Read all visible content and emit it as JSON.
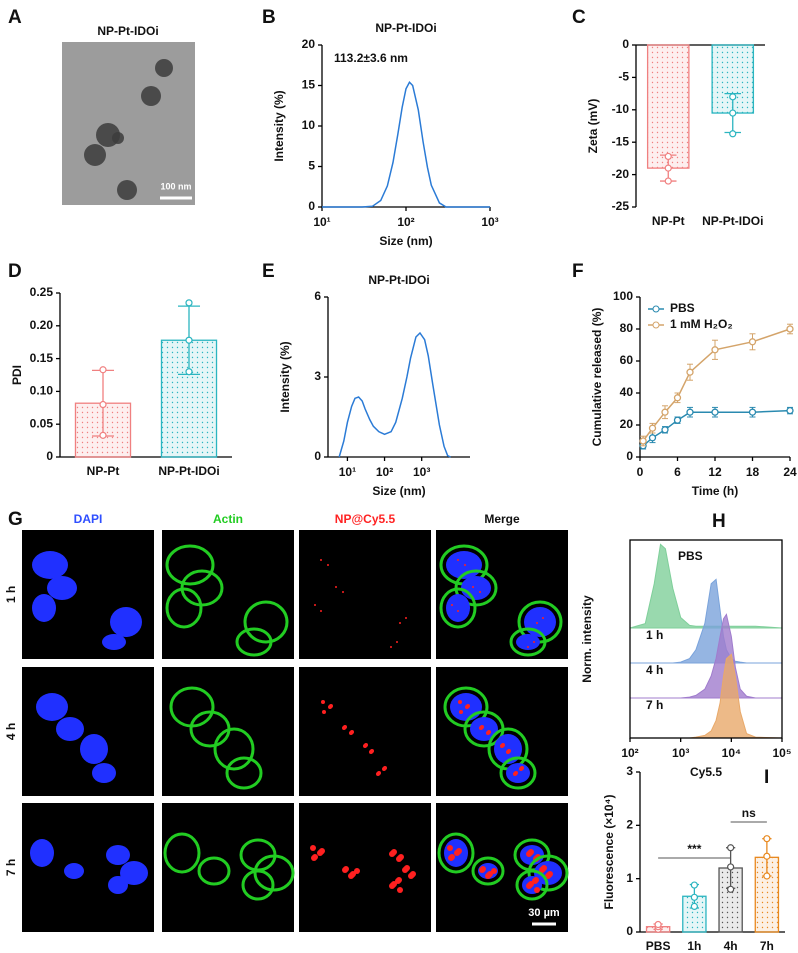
{
  "micrograph": {
    "panel": "A",
    "title": "NP-Pt-IDOi",
    "scale_bar": "100 nm"
  },
  "confocal": {
    "panel": "G",
    "channels": [
      "DAPI",
      "Actin",
      "NP@Cy5.5",
      "Merge"
    ],
    "timepoints": [
      "1 h",
      "4 h",
      "7 h"
    ],
    "scale_bar": "30 µm"
  },
  "chart_data": [
    {
      "type": "line",
      "panel": "B",
      "title": "NP-Pt-IDOi",
      "annotation": "113.2±3.6 nm",
      "xlabel": "Size (nm)",
      "ylabel": "Intensity (%)",
      "xlog": true,
      "color": "#2b7bd6",
      "xlim": [
        10,
        1000
      ],
      "xticks": [
        {
          "value": 10,
          "label": "10¹"
        },
        {
          "value": 100,
          "label": "10²"
        },
        {
          "value": 1000,
          "label": "10³"
        }
      ],
      "ylim": [
        0,
        20
      ],
      "yticks": [
        0,
        5,
        10,
        15,
        20
      ],
      "x": [
        10,
        30,
        40,
        50,
        60,
        70,
        80,
        90,
        100,
        110,
        120,
        140,
        160,
        180,
        200,
        250,
        300,
        1000
      ],
      "values": [
        0,
        0,
        0.1,
        0.8,
        2.6,
        5.5,
        9,
        12.3,
        14.6,
        15.4,
        15,
        12,
        8,
        4.9,
        2.7,
        0.5,
        0,
        0
      ]
    },
    {
      "type": "bar",
      "panel": "C",
      "ylabel": "Zeta (mV)",
      "categories": [
        "NP-Pt",
        "NP-Pt-IDOi"
      ],
      "colors": [
        "#f08080",
        "#2bb5c0"
      ],
      "values": [
        -19,
        -10.5
      ],
      "errors": [
        2,
        3
      ],
      "points": [
        [
          -17.2,
          -19,
          -21
        ],
        [
          -8,
          -10.5,
          -13.7
        ]
      ],
      "ylim": [
        -25,
        0
      ],
      "yticks": [
        -25,
        -20,
        -15,
        -10,
        -5,
        0
      ]
    },
    {
      "type": "bar",
      "panel": "D",
      "ylabel": "PDI",
      "categories": [
        "NP-Pt",
        "NP-Pt-IDOi"
      ],
      "colors": [
        "#f08080",
        "#2bb5c0"
      ],
      "values": [
        0.082,
        0.178
      ],
      "errors": [
        0.05,
        0.052
      ],
      "points": [
        [
          0.133,
          0.08,
          0.033
        ],
        [
          0.235,
          0.178,
          0.13
        ]
      ],
      "ylim": [
        0,
        0.25
      ],
      "yticks": [
        0,
        0.05,
        {
          "value": 0.1,
          "label": "0.10"
        },
        0.15,
        {
          "value": 0.2,
          "label": "0.20"
        },
        0.25
      ]
    },
    {
      "type": "line",
      "panel": "E",
      "title": "NP-Pt-IDOi",
      "xlabel": "Size (nm)",
      "ylabel": "Intensity (%)",
      "xlog": true,
      "color": "#2b7bd6",
      "xlim": [
        3,
        20000
      ],
      "xticks": [
        {
          "value": 10,
          "label": "10¹"
        },
        {
          "value": 100,
          "label": "10²"
        },
        {
          "value": 1000,
          "label": "10³"
        }
      ],
      "ylim": [
        0,
        6
      ],
      "yticks": [
        0,
        3,
        6
      ],
      "x": [
        6,
        8,
        10,
        13,
        16,
        20,
        25,
        30,
        40,
        50,
        70,
        100,
        150,
        200,
        300,
        400,
        500,
        700,
        900,
        1200,
        1500,
        2000,
        3000,
        4000,
        5000,
        6000
      ],
      "values": [
        0,
        0.6,
        1.3,
        1.9,
        2.2,
        2.25,
        2.1,
        1.8,
        1.4,
        1.15,
        0.95,
        0.85,
        0.95,
        1.3,
        2.2,
        3,
        3.7,
        4.5,
        4.65,
        4.4,
        3.8,
        2.7,
        1.2,
        0.4,
        0.05,
        0
      ]
    },
    {
      "type": "line",
      "panel": "F",
      "xlabel": "Time (h)",
      "ylabel": "Cumulative released (%)",
      "legend": "upper left",
      "markers": true,
      "xlim": [
        0,
        24
      ],
      "xticks": [
        0,
        6,
        12,
        18,
        24
      ],
      "ylim": [
        0,
        100
      ],
      "yticks": [
        0,
        20,
        40,
        60,
        80,
        100
      ],
      "x": [
        0.5,
        2,
        4,
        6,
        8,
        12,
        18,
        24
      ],
      "series": [
        {
          "name": "PBS",
          "color": "#2a8ab0",
          "values": [
            7,
            12,
            17,
            23,
            28,
            28,
            28,
            29
          ],
          "errors": [
            2,
            3,
            2,
            2,
            3,
            3,
            3,
            2
          ]
        },
        {
          "name": "1 mM H₂O₂",
          "color": "#d4a46a",
          "values": [
            10,
            18,
            28,
            37,
            53,
            67,
            72,
            80
          ],
          "errors": [
            3,
            3,
            4,
            3,
            5,
            6,
            5,
            3
          ]
        }
      ]
    },
    {
      "type": "ridgeline",
      "panel": "H",
      "xlabel": "Cy5.5",
      "ylabel": "Norm. intensity",
      "xlog": true,
      "xlim": [
        100,
        100000
      ],
      "xticks": [
        {
          "value": 100,
          "label": "10²"
        },
        {
          "value": 1000,
          "label": "10³"
        },
        {
          "value": 10000,
          "label": "10⁴"
        },
        {
          "value": 100000,
          "label": "10⁵"
        }
      ],
      "x": [
        100,
        200,
        300,
        400,
        500,
        700,
        1000,
        1500,
        2000,
        3000,
        4000,
        5000,
        6000,
        7000,
        8000,
        10000,
        12000,
        15000,
        20000,
        30000,
        100000
      ],
      "series": [
        {
          "name": "PBS",
          "color": "#7fcf9a",
          "values": [
            0,
            0.05,
            0.5,
            0.95,
            0.9,
            0.45,
            0.12,
            0.03,
            0.02,
            0.02,
            0.02,
            0.02,
            0.02,
            0.02,
            0.02,
            0.02,
            0.02,
            0.02,
            0.02,
            0.02,
            0
          ]
        },
        {
          "name": "1 h",
          "color": "#7aa3db",
          "values": [
            0,
            0,
            0,
            0,
            0,
            0,
            0.01,
            0.05,
            0.15,
            0.45,
            0.9,
            0.95,
            0.6,
            0.3,
            0.15,
            0.05,
            0.02,
            0.01,
            0,
            0,
            0
          ]
        },
        {
          "name": "4 h",
          "color": "#a07ccd",
          "values": [
            0,
            0,
            0,
            0,
            0,
            0,
            0,
            0.01,
            0.03,
            0.1,
            0.25,
            0.45,
            0.7,
            0.9,
            0.95,
            0.7,
            0.35,
            0.1,
            0.02,
            0,
            0
          ]
        },
        {
          "name": "7 h",
          "color": "#e8a96a",
          "values": [
            0,
            0,
            0,
            0,
            0,
            0,
            0,
            0,
            0.01,
            0.03,
            0.08,
            0.2,
            0.4,
            0.7,
            0.9,
            0.95,
            0.7,
            0.3,
            0.05,
            0.01,
            0
          ]
        }
      ]
    },
    {
      "type": "bar",
      "panel": "I",
      "ylabel": "Fluorescence (×10⁴)",
      "categories": [
        "PBS",
        "1h",
        "4h",
        "7h"
      ],
      "colors": [
        "#f08080",
        "#2bb5c0",
        "#555555",
        "#e8891f"
      ],
      "values": [
        0.1,
        0.67,
        1.2,
        1.4
      ],
      "errors": [
        0.05,
        0.22,
        0.38,
        0.35
      ],
      "points": [
        [
          0.05,
          0.1,
          0.14
        ],
        [
          0.88,
          0.65,
          0.48
        ],
        [
          1.58,
          1.22,
          0.8
        ],
        [
          1.75,
          1.42,
          1.05
        ]
      ],
      "ylim": [
        0,
        3
      ],
      "yticks": [
        0,
        1,
        2,
        3
      ],
      "annotations": [
        "***",
        "ns"
      ]
    }
  ]
}
